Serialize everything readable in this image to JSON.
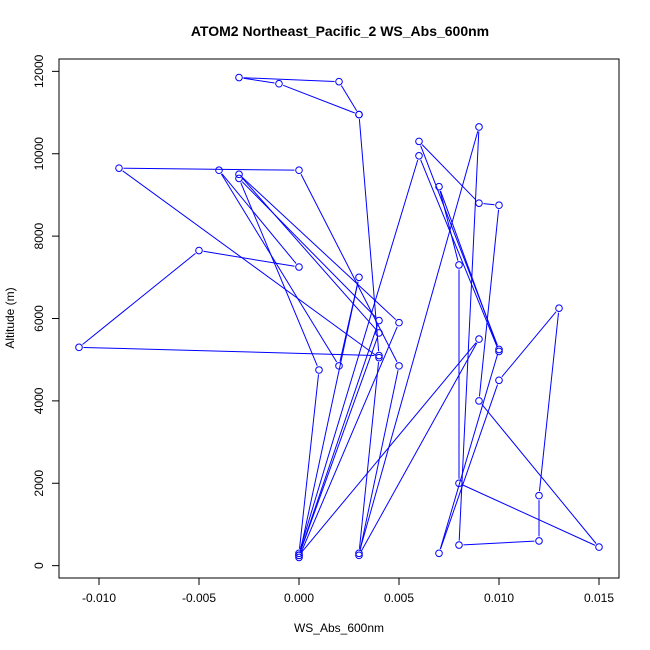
{
  "chart_data": {
    "type": "line",
    "title": "ATOM2 Northeast_Pacific_2 WS_Abs_600nm",
    "xlabel": "WS_Abs_600nm",
    "ylabel": "Altitude (m)",
    "xlim": [
      -0.012,
      0.016
    ],
    "ylim": [
      -300,
      12300
    ],
    "xticks": [
      -0.01,
      -0.005,
      0.0,
      0.005,
      0.01,
      0.015
    ],
    "xtick_labels": [
      "-0.010",
      "-0.005",
      "0.000",
      "0.005",
      "0.010",
      "0.015"
    ],
    "yticks": [
      0,
      2000,
      4000,
      6000,
      8000,
      10000,
      12000
    ],
    "ytick_labels": [
      "0",
      "2000",
      "4000",
      "6000",
      "8000",
      "10000",
      "12000"
    ],
    "color": "#0000ff",
    "markers": "open-circle",
    "grid": false,
    "series": [
      {
        "points": [
          [
            0.003,
            10950
          ],
          [
            0.002,
            11750
          ],
          [
            -0.003,
            11850
          ],
          [
            -0.001,
            11700
          ],
          [
            0.003,
            10950
          ],
          [
            0.004,
            5100
          ],
          [
            -0.011,
            5300
          ],
          [
            -0.005,
            7650
          ],
          [
            0.0,
            7250
          ],
          [
            -0.004,
            9600
          ],
          [
            0.002,
            4850
          ],
          [
            0.003,
            7000
          ],
          [
            0.0,
            200
          ],
          [
            0.005,
            5900
          ],
          [
            -0.003,
            9500
          ],
          [
            0.004,
            5650
          ],
          [
            0.0,
            250
          ],
          [
            0.004,
            5950
          ],
          [
            -0.003,
            9400
          ],
          [
            0.001,
            4750
          ],
          [
            0.0,
            300
          ],
          [
            0.006,
            9950
          ],
          [
            0.01,
            5200
          ],
          [
            0.007,
            9200
          ],
          [
            0.008,
            7300
          ],
          [
            0.008,
            2000
          ],
          [
            0.015,
            450
          ],
          [
            0.009,
            4000
          ],
          [
            0.01,
            8750
          ],
          [
            0.009,
            8800
          ],
          [
            0.006,
            10300
          ],
          [
            0.01,
            5250
          ],
          [
            0.007,
            300
          ],
          [
            0.01,
            4500
          ],
          [
            0.013,
            6250
          ],
          [
            0.012,
            1700
          ],
          [
            0.012,
            600
          ],
          [
            0.008,
            500
          ],
          [
            0.009,
            10650
          ],
          [
            0.003,
            300
          ],
          [
            0.004,
            5050
          ],
          [
            -0.009,
            9650
          ],
          [
            0.0,
            9600
          ],
          [
            0.005,
            4850
          ],
          [
            0.003,
            250
          ],
          [
            0.009,
            5500
          ],
          [
            0.0,
            250
          ]
        ]
      }
    ]
  }
}
